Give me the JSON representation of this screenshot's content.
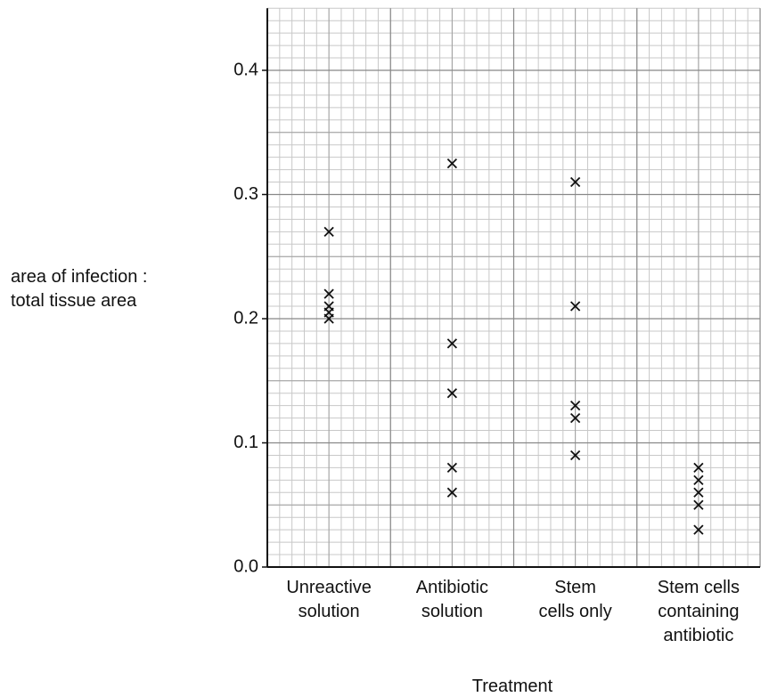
{
  "chart_data": {
    "type": "strip",
    "ylabel": "area of infection :\ntotal tissue area",
    "xlabel": "Treatment",
    "categories": [
      "Unreactive\nsolution",
      "Antibiotic\nsolution",
      "Stem\ncells only",
      "Stem cells\ncontaining\nantibiotic"
    ],
    "series": [
      {
        "name": null,
        "color": "#111111",
        "values": [
          [
            0.27,
            0.22,
            0.21,
            0.205,
            0.2
          ],
          [
            0.325,
            0.18,
            0.14,
            0.08,
            0.06
          ],
          [
            0.31,
            0.21,
            0.13,
            0.12,
            0.09
          ],
          [
            0.08,
            0.07,
            0.06,
            0.05,
            0.03
          ]
        ]
      }
    ],
    "ylim": [
      0,
      0.45
    ],
    "yticks": [
      {
        "value": 0,
        "label": "0.0"
      },
      0.1,
      0.2,
      0.3,
      0.4
    ],
    "grid": true
  }
}
